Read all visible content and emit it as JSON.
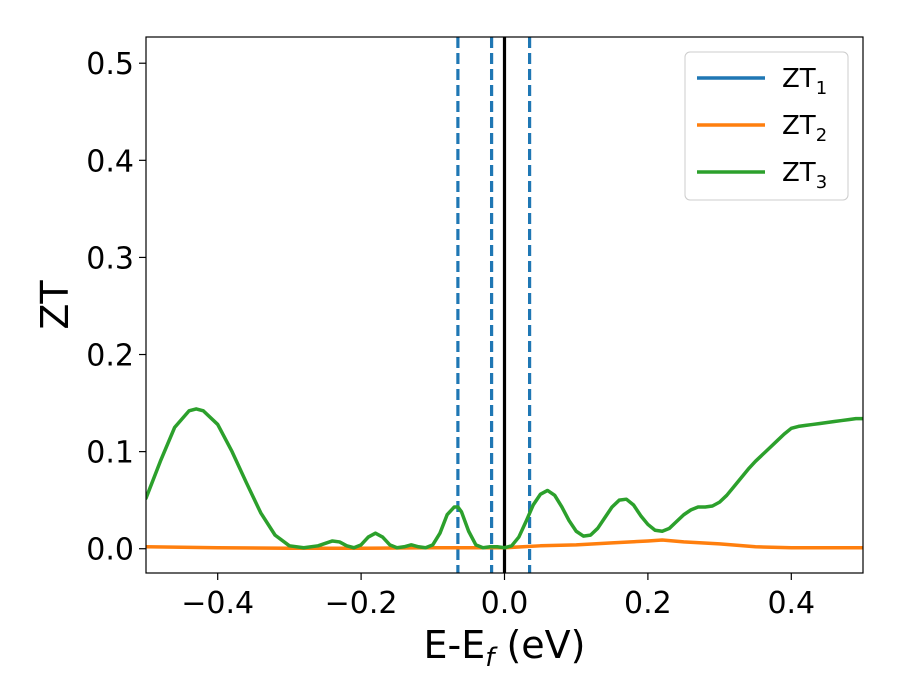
{
  "chart_data": {
    "type": "line",
    "xlabel": {
      "main": "E-E",
      "sub": "f",
      "unit": " (eV)"
    },
    "ylabel": "ZT",
    "xlim": [
      -0.5,
      0.5
    ],
    "ylim": [
      -0.025,
      0.527
    ],
    "xticks": [
      -0.4,
      -0.2,
      0.0,
      0.2,
      0.4
    ],
    "xtick_labels": [
      "−0.4",
      "−0.2",
      "0.0",
      "0.2",
      "0.4"
    ],
    "yticks": [
      0.0,
      0.1,
      0.2,
      0.3,
      0.4,
      0.5
    ],
    "ytick_labels": [
      "0.0",
      "0.1",
      "0.2",
      "0.3",
      "0.4",
      "0.5"
    ],
    "grid": false,
    "legend_placement": "top-right",
    "series": [
      {
        "name": "ZT",
        "sub": "1",
        "color": "#1f77b4",
        "x": [],
        "y": []
      },
      {
        "name": "ZT",
        "sub": "2",
        "color": "#ff7f0e",
        "x": [
          -0.5,
          -0.4,
          -0.3,
          -0.2,
          -0.1,
          0.0,
          0.05,
          0.1,
          0.15,
          0.2,
          0.22,
          0.25,
          0.3,
          0.35,
          0.4,
          0.5
        ],
        "y": [
          0.002,
          0.001,
          0.0005,
          0.0005,
          0.001,
          0.001,
          0.003,
          0.004,
          0.006,
          0.008,
          0.009,
          0.007,
          0.005,
          0.002,
          0.001,
          0.001
        ]
      },
      {
        "name": "ZT",
        "sub": "3",
        "color": "#2ca02c",
        "x": [
          -0.5,
          -0.48,
          -0.46,
          -0.44,
          -0.43,
          -0.42,
          -0.4,
          -0.38,
          -0.36,
          -0.34,
          -0.32,
          -0.3,
          -0.28,
          -0.26,
          -0.24,
          -0.23,
          -0.22,
          -0.21,
          -0.2,
          -0.19,
          -0.18,
          -0.17,
          -0.16,
          -0.15,
          -0.14,
          -0.13,
          -0.12,
          -0.11,
          -0.1,
          -0.09,
          -0.08,
          -0.07,
          -0.065,
          -0.06,
          -0.05,
          -0.04,
          -0.03,
          -0.02,
          -0.01,
          0.0,
          0.01,
          0.02,
          0.03,
          0.04,
          0.05,
          0.06,
          0.07,
          0.08,
          0.09,
          0.1,
          0.11,
          0.12,
          0.13,
          0.14,
          0.15,
          0.16,
          0.17,
          0.18,
          0.19,
          0.2,
          0.21,
          0.22,
          0.23,
          0.24,
          0.25,
          0.26,
          0.27,
          0.28,
          0.29,
          0.3,
          0.31,
          0.32,
          0.33,
          0.34,
          0.35,
          0.36,
          0.37,
          0.38,
          0.39,
          0.4,
          0.41,
          0.42,
          0.43,
          0.44,
          0.45,
          0.46,
          0.47,
          0.48,
          0.49,
          0.5
        ],
        "y": [
          0.052,
          0.09,
          0.125,
          0.142,
          0.144,
          0.142,
          0.128,
          0.1,
          0.068,
          0.037,
          0.014,
          0.003,
          0.001,
          0.003,
          0.008,
          0.007,
          0.003,
          0.001,
          0.004,
          0.012,
          0.016,
          0.012,
          0.004,
          0.001,
          0.002,
          0.004,
          0.002,
          0.001,
          0.004,
          0.016,
          0.035,
          0.043,
          0.043,
          0.038,
          0.018,
          0.004,
          0.001,
          0.002,
          0.002,
          0.001,
          0.003,
          0.012,
          0.028,
          0.045,
          0.056,
          0.06,
          0.055,
          0.043,
          0.029,
          0.018,
          0.013,
          0.014,
          0.021,
          0.032,
          0.043,
          0.05,
          0.051,
          0.045,
          0.034,
          0.025,
          0.019,
          0.018,
          0.021,
          0.028,
          0.035,
          0.04,
          0.043,
          0.043,
          0.044,
          0.048,
          0.055,
          0.064,
          0.073,
          0.082,
          0.09,
          0.097,
          0.104,
          0.111,
          0.118,
          0.124,
          0.126,
          0.127,
          0.128,
          0.129,
          0.13,
          0.131,
          0.132,
          0.133,
          0.134,
          0.134
        ]
      }
    ],
    "vlines": [
      {
        "x": -0.065,
        "style": "dashed",
        "color": "#1f77b4"
      },
      {
        "x": -0.018,
        "style": "dashed",
        "color": "#1f77b4"
      },
      {
        "x": 0.035,
        "style": "dashed",
        "color": "#1f77b4"
      },
      {
        "x": 0.0,
        "style": "solid",
        "color": "#000000"
      }
    ]
  }
}
